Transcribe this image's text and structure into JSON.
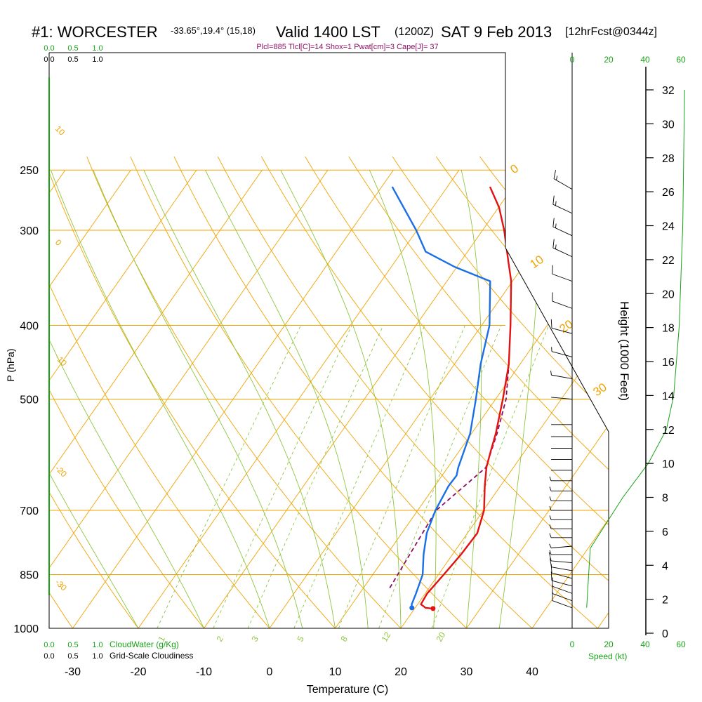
{
  "chart_data": {
    "type": "skew-t",
    "header": {
      "station": "#1: WORCESTER",
      "coords": "-33.65°,19.4° (15,18)",
      "valid_main": "Valid 1400 LST",
      "valid_utc": "(1200Z)",
      "date": "SAT 9 Feb 2013",
      "forecast": "[12hrFcst@0344z]"
    },
    "indices": "Plcl=885 Tlcl[C]=14 Shox=1 Pwat[cm]=3 Cape[J]= 37",
    "cloudwater_scale": [
      "0.0",
      "0.5",
      "1.0"
    ],
    "cloudiness_scale": [
      "0.0",
      "0.5",
      "1.0"
    ],
    "cloudwater_label": "CloudWater (g/Kg)",
    "cloudiness_label": "Grid-Scale Cloudiness",
    "ylabel": "P (hPa)",
    "xlabel": "Temperature (C)",
    "height_label": "Height (1000 Feet)",
    "speed_label": "Speed (kt)",
    "pressure_levels": [
      250,
      300,
      400,
      500,
      700,
      850,
      1000
    ],
    "pressure_tick_labels": [
      "250",
      "300",
      "400",
      "500",
      "700",
      "850",
      "1000"
    ],
    "temp_ticks": [
      -30,
      -20,
      -10,
      0,
      10,
      20,
      30,
      40
    ],
    "temp_tick_labels": [
      "-30",
      "-20",
      "-10",
      "0",
      "10",
      "20",
      "30",
      "40"
    ],
    "xlim": [
      -35,
      36
    ],
    "height_ticks": [
      0,
      2,
      4,
      6,
      8,
      10,
      12,
      14,
      16,
      18,
      20,
      22,
      24,
      26,
      28,
      30,
      32
    ],
    "height_tick_labels": [
      "0",
      "2",
      "4",
      "6",
      "8",
      "10",
      "12",
      "14",
      "16",
      "18",
      "20",
      "22",
      "24",
      "26",
      "28",
      "30",
      "32"
    ],
    "speed_ticks": [
      "0",
      "20",
      "40",
      "60"
    ],
    "isotherm_labels": [
      "-30",
      "-20",
      "-10",
      "0",
      "10",
      "20",
      "30"
    ],
    "dry_adiabat_labels": [
      "10",
      "0",
      "-10",
      "-20",
      "-30"
    ],
    "mixing_ratio_labels": [
      "1",
      "2",
      "3",
      "5",
      "8",
      "12",
      "20"
    ],
    "temperature_profile": [
      [
        942,
        22.8
      ],
      [
        940,
        21.6
      ],
      [
        930,
        20.5
      ],
      [
        900,
        20.3
      ],
      [
        850,
        20.8
      ],
      [
        800,
        21.3
      ],
      [
        750,
        21.5
      ],
      [
        700,
        20.1
      ],
      [
        650,
        17.6
      ],
      [
        615,
        15.9
      ],
      [
        585,
        14.8
      ],
      [
        555,
        13.7
      ],
      [
        500,
        11.1
      ],
      [
        450,
        8.3
      ],
      [
        400,
        4.4
      ],
      [
        350,
        -0.2
      ],
      [
        330,
        -2.7
      ],
      [
        300,
        -6.7
      ],
      [
        280,
        -9.9
      ],
      [
        263,
        -13.5
      ]
    ],
    "dewpoint_profile": [
      [
        940,
        19.5
      ],
      [
        930,
        19.1
      ],
      [
        900,
        18.6
      ],
      [
        850,
        17.6
      ],
      [
        800,
        15.6
      ],
      [
        750,
        13.8
      ],
      [
        700,
        12.7
      ],
      [
        650,
        12.1
      ],
      [
        630,
        12.2
      ],
      [
        615,
        11.6
      ],
      [
        555,
        9.8
      ],
      [
        500,
        7.0
      ],
      [
        450,
        4.0
      ],
      [
        400,
        1.2
      ],
      [
        350,
        -3.4
      ],
      [
        335,
        -10.4
      ],
      [
        320,
        -16.4
      ],
      [
        300,
        -20.1
      ],
      [
        263,
        -28.4
      ]
    ],
    "parcel_profile": [
      [
        885,
        14
      ],
      [
        700,
        12.8
      ],
      [
        615,
        15.8
      ],
      [
        555,
        13.9
      ],
      [
        500,
        11.6
      ],
      [
        460,
        9.0
      ],
      [
        450,
        8.3
      ]
    ],
    "wind_profile": [
      [
        940,
        290,
        12
      ],
      [
        920,
        290,
        12
      ],
      [
        900,
        290,
        12
      ],
      [
        880,
        285,
        12
      ],
      [
        860,
        285,
        12
      ],
      [
        840,
        280,
        10
      ],
      [
        820,
        275,
        10
      ],
      [
        800,
        270,
        8
      ],
      [
        780,
        265,
        6
      ],
      [
        760,
        270,
        6
      ],
      [
        740,
        270,
        8
      ],
      [
        720,
        270,
        8
      ],
      [
        700,
        270,
        8
      ],
      [
        680,
        270,
        6
      ],
      [
        660,
        270,
        5
      ],
      [
        640,
        270,
        5
      ],
      [
        620,
        270,
        4
      ],
      [
        600,
        270,
        4
      ],
      [
        580,
        270,
        4
      ],
      [
        560,
        270,
        3
      ],
      [
        540,
        270,
        3
      ],
      [
        500,
        275,
        4
      ],
      [
        470,
        280,
        5
      ],
      [
        440,
        285,
        5
      ],
      [
        410,
        285,
        10
      ],
      [
        380,
        290,
        12
      ],
      [
        350,
        290,
        14
      ],
      [
        325,
        295,
        15
      ],
      [
        305,
        295,
        15
      ],
      [
        285,
        295,
        17
      ],
      [
        265,
        300,
        17
      ]
    ],
    "height_profile_kft": [
      [
        1.5,
        8
      ],
      [
        5,
        10
      ],
      [
        8,
        28
      ],
      [
        10,
        42
      ],
      [
        12,
        52
      ],
      [
        14,
        56
      ],
      [
        18,
        59
      ],
      [
        24,
        61
      ],
      [
        32,
        62
      ]
    ],
    "colors": {
      "isobar": "#f0a400",
      "isotherm": "#f0a400",
      "dry_adiabat": "#f0a400",
      "moist_adiabat": "#8ec63f",
      "mixing_ratio": "#8ec63f",
      "temperature": "#e41111",
      "dewpoint": "#1a6fe6",
      "parcel": "#8a0f62",
      "green_text": "#1aa11a",
      "indices_text": "#8a0f62"
    }
  }
}
